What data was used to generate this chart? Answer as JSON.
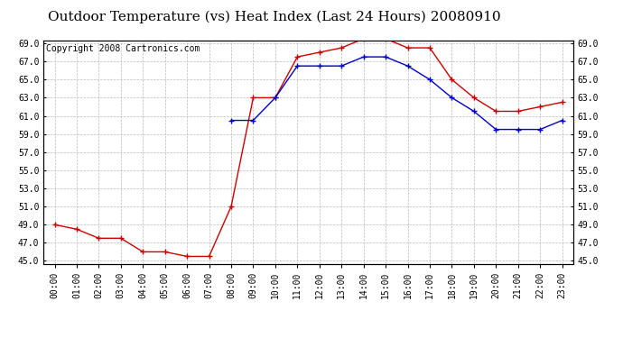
{
  "title": "Outdoor Temperature (vs) Heat Index (Last 24 Hours) 20080910",
  "copyright": "Copyright 2008 Cartronics.com",
  "x_labels": [
    "00:00",
    "01:00",
    "02:00",
    "03:00",
    "04:00",
    "05:00",
    "06:00",
    "07:00",
    "08:00",
    "09:00",
    "10:00",
    "11:00",
    "12:00",
    "13:00",
    "14:00",
    "15:00",
    "16:00",
    "17:00",
    "18:00",
    "19:00",
    "20:00",
    "21:00",
    "22:00",
    "23:00"
  ],
  "red_data": [
    49.0,
    48.5,
    47.5,
    47.5,
    46.0,
    46.0,
    45.5,
    45.5,
    51.0,
    63.0,
    63.0,
    67.5,
    68.0,
    68.5,
    69.5,
    69.5,
    68.5,
    68.5,
    65.0,
    63.0,
    61.5,
    61.5,
    62.0,
    62.5
  ],
  "blue_data": [
    null,
    null,
    null,
    null,
    null,
    null,
    null,
    null,
    60.5,
    60.5,
    63.0,
    66.5,
    66.5,
    66.5,
    67.5,
    67.5,
    66.5,
    65.0,
    63.0,
    61.5,
    59.5,
    59.5,
    59.5,
    60.5
  ],
  "ylim_min": 45.0,
  "ylim_max": 69.0,
  "yticks": [
    45.0,
    47.0,
    49.0,
    51.0,
    53.0,
    55.0,
    57.0,
    59.0,
    61.0,
    63.0,
    65.0,
    67.0,
    69.0
  ],
  "red_color": "#cc0000",
  "blue_color": "#0000cc",
  "background_color": "#ffffff",
  "grid_color": "#bbbbbb",
  "title_fontsize": 11,
  "copyright_fontsize": 7,
  "tick_fontsize": 7
}
